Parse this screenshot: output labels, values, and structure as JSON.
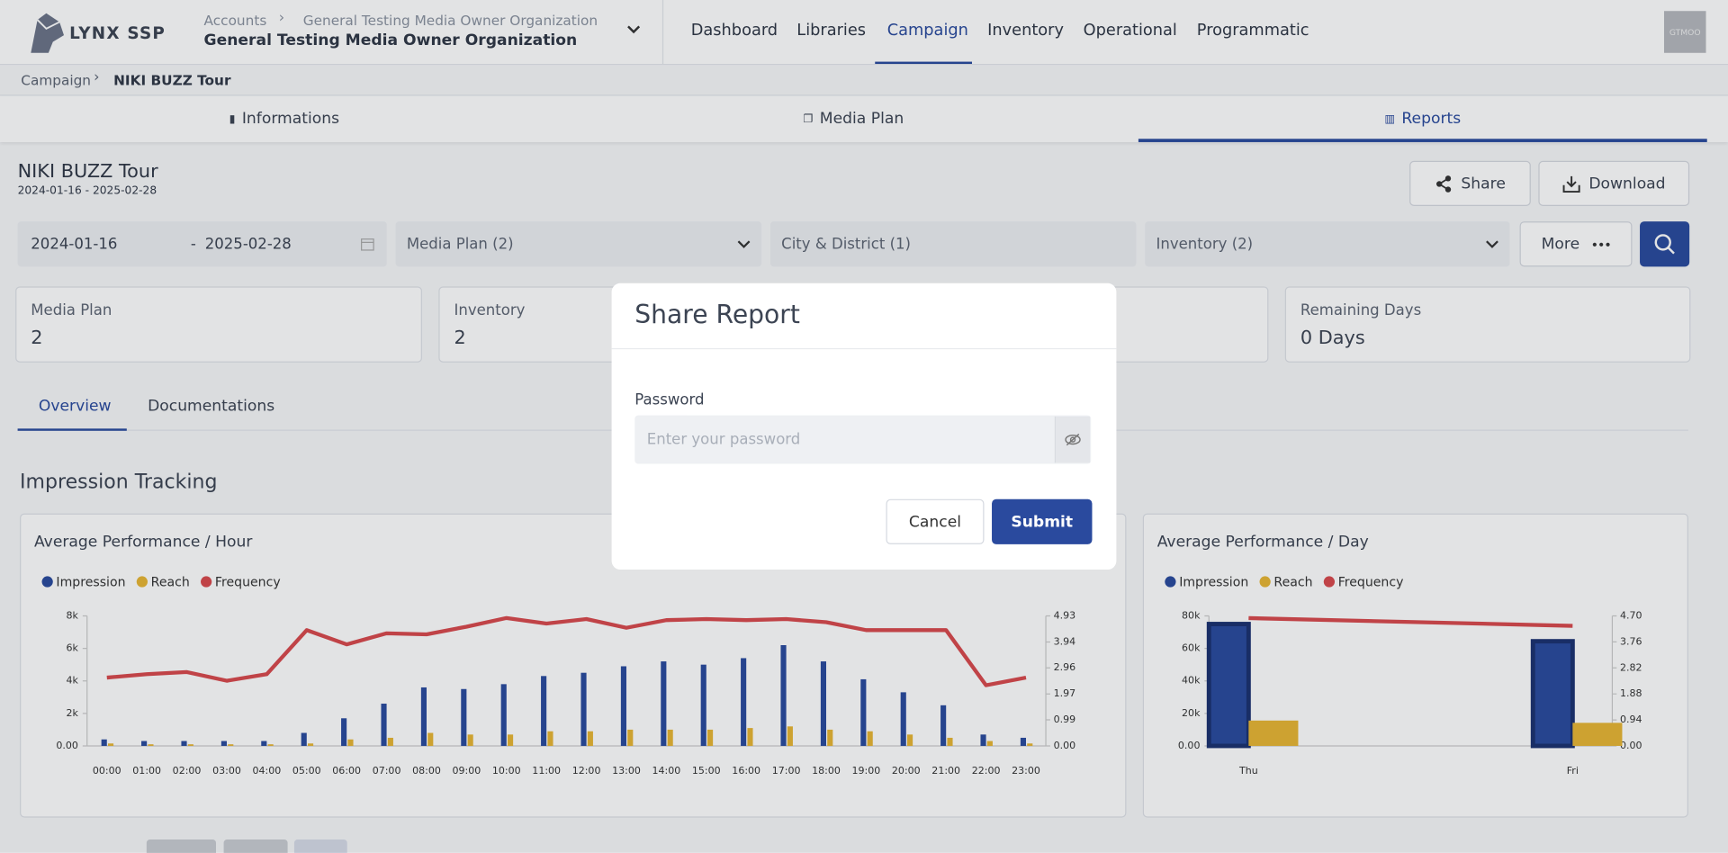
{
  "header": {
    "logo": "LYNX SSP",
    "breadcrumb": [
      "Accounts",
      "General Testing Media Owner Organization"
    ],
    "organization": "General Testing Media Owner Organization",
    "nav": [
      "Dashboard",
      "Libraries",
      "Campaign",
      "Inventory",
      "Operational",
      "Programmatic"
    ],
    "avatar": "GTMOO"
  },
  "breadcrumb": [
    "Campaign",
    "NIKI BUZZ Tour"
  ],
  "tabs": [
    "Informations",
    "Media Plan",
    "Reports"
  ],
  "campaign": {
    "title": "NIKI BUZZ Tour",
    "dates": "2024-01-16 - 2025-02-28",
    "share": "Share",
    "download": "Download"
  },
  "filters": {
    "start": "2024-01-16",
    "separator": "-",
    "end": "2025-02-28",
    "media_plan": "Media Plan (2)",
    "city": "City & District (1)",
    "inventory": "Inventory (2)",
    "more": "More"
  },
  "stats": [
    {
      "label": "Media Plan",
      "value": "2"
    },
    {
      "label": "Inventory",
      "value": "2"
    },
    {
      "label": "Remaining Days",
      "value": "0 Days"
    }
  ],
  "subtabs": [
    "Overview",
    "Documentations"
  ],
  "section_title": "Impression Tracking",
  "charts": [
    {
      "type": "bar-line",
      "title": "Average Performance / Hour",
      "categories": [
        "00:00",
        "01:00",
        "02:00",
        "03:00",
        "04:00",
        "05:00",
        "06:00",
        "07:00",
        "08:00",
        "09:00",
        "10:00",
        "11:00",
        "12:00",
        "13:00",
        "14:00",
        "15:00",
        "16:00",
        "17:00",
        "18:00",
        "19:00",
        "20:00",
        "21:00",
        "22:00",
        "23:00"
      ],
      "series": [
        {
          "name": "Impression",
          "color": "#2a4a9e",
          "values": [
            400,
            300,
            300,
            300,
            300,
            800,
            1700,
            2600,
            3600,
            3500,
            3800,
            4300,
            4500,
            4900,
            5200,
            5000,
            5400,
            6200,
            5200,
            4100,
            3300,
            2500,
            700,
            500
          ]
        },
        {
          "name": "Reach",
          "color": "#e8b634",
          "values": [
            150,
            100,
            100,
            100,
            100,
            150,
            400,
            500,
            800,
            700,
            700,
            900,
            900,
            1000,
            1000,
            1000,
            1100,
            1200,
            1000,
            900,
            700,
            500,
            300,
            150
          ]
        },
        {
          "name": "Frequency",
          "color": "#d9494d",
          "axis": "y2",
          "values": [
            2.59,
            2.72,
            2.8,
            2.47,
            2.72,
            4.39,
            3.85,
            4.27,
            4.23,
            4.52,
            4.85,
            4.64,
            4.81,
            4.48,
            4.77,
            4.81,
            4.77,
            4.81,
            4.69,
            4.39,
            4.39,
            4.39,
            2.3,
            2.59
          ]
        }
      ],
      "ylim": [
        0,
        8000
      ],
      "yticks": [
        {
          "value": 0,
          "label": "0.00"
        },
        {
          "value": 2000,
          "label": "2k"
        },
        {
          "value": 4000,
          "label": "4k"
        },
        {
          "value": 6000,
          "label": "6k"
        },
        {
          "value": 8000,
          "label": "8k"
        }
      ],
      "y2lim": [
        0,
        4.93
      ],
      "y2ticks": [
        {
          "value": 0,
          "label": "0.00"
        },
        0.99,
        1.97,
        2.96,
        3.94,
        4.93
      ]
    },
    {
      "type": "bar-line",
      "title": "Average Performance / Day",
      "categories": [
        "Thu",
        "Fri"
      ],
      "series": [
        {
          "name": "Impression",
          "color": "#2a4a9e",
          "values": [
            75000,
            64400
          ]
        },
        {
          "name": "Reach",
          "color": "#e8b634",
          "values": [
            15600,
            14200
          ]
        },
        {
          "name": "Frequency",
          "color": "#d9494d",
          "axis": "y2",
          "values": [
            4.62,
            4.34
          ]
        }
      ],
      "ylim": [
        0,
        80000
      ],
      "yticks": [
        {
          "value": 0,
          "label": "0.00"
        },
        {
          "value": 20000,
          "label": "20k"
        },
        {
          "value": 40000,
          "label": "40k"
        },
        {
          "value": 60000,
          "label": "60k"
        },
        {
          "value": 80000,
          "label": "80k"
        }
      ],
      "y2lim": [
        0,
        4.7
      ],
      "y2ticks": [
        {
          "value": 0,
          "label": "0.00"
        },
        0.94,
        1.88,
        2.82,
        3.76,
        {
          "value": 4.7,
          "label": "4.70"
        }
      ]
    }
  ],
  "modal": {
    "title": "Share Report",
    "label": "Password",
    "placeholder": "Enter your password",
    "cancel": "Cancel",
    "submit": "Submit"
  }
}
